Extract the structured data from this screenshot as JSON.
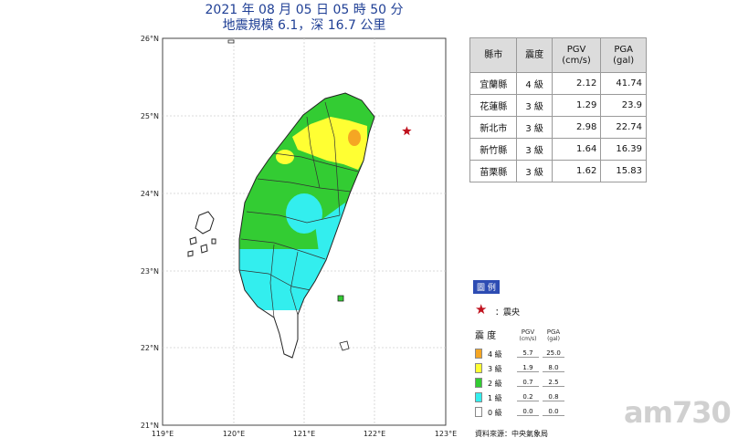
{
  "title": {
    "line1": "2021 年 08 月 05 日 05 時 50 分",
    "line2": "地震規模 6.1，深 16.7 公里"
  },
  "map": {
    "lat_labels": [
      "26°N",
      "25°N",
      "24°N",
      "23°N",
      "22°N",
      "21°N"
    ],
    "lon_labels": [
      "119°E",
      "120°E",
      "121°E",
      "122°E",
      "123°E"
    ],
    "epicenter": {
      "lon": 122.45,
      "lat": 24.8
    }
  },
  "table": {
    "headers": [
      "縣市",
      "震度",
      "PGV\n(cm/s)",
      "PGA\n(gal)"
    ],
    "header_county": "縣市",
    "header_intensity": "震度",
    "header_pgv": "PGV",
    "header_pgv_unit": "(cm/s)",
    "header_pga": "PGA",
    "header_pga_unit": "(gal)",
    "rows": [
      {
        "county": "宜蘭縣",
        "intensity": "4 級",
        "pgv": "2.12",
        "pga": "41.74"
      },
      {
        "county": "花蓮縣",
        "intensity": "3 級",
        "pgv": "1.29",
        "pga": "23.9"
      },
      {
        "county": "新北市",
        "intensity": "3 級",
        "pgv": "2.98",
        "pga": "22.74"
      },
      {
        "county": "新竹縣",
        "intensity": "3 級",
        "pgv": "1.64",
        "pga": "16.39"
      },
      {
        "county": "苗栗縣",
        "intensity": "3 級",
        "pgv": "1.62",
        "pga": "15.83"
      }
    ]
  },
  "legend": {
    "heading": "圖 例",
    "epicenter_label": "：震央",
    "col_intensity": "震 度",
    "col_pgv": "PGV",
    "col_pgv_unit": "(cm/s)",
    "col_pga": "PGA",
    "col_pga_unit": "(gal)",
    "levels": [
      {
        "label": "4 級",
        "pgv": "5.7",
        "pga": "25.0",
        "color": "#f5a623"
      },
      {
        "label": "3 級",
        "pgv": "1.9",
        "pga": "8.0",
        "color": "#ffff33"
      },
      {
        "label": "2 級",
        "pgv": "0.7",
        "pga": "2.5",
        "color": "#33cc33"
      },
      {
        "label": "1 級",
        "pgv": "0.2",
        "pga": "0.8",
        "color": "#33eeee"
      },
      {
        "label": "0 級",
        "pgv": "0.0",
        "pga": "0.0",
        "color": "#ffffff"
      }
    ],
    "source": "資料來源：中央氣象局"
  },
  "colors": {
    "level4": "#f5a623",
    "level3": "#ffff33",
    "level2": "#33cc33",
    "level1": "#33eeee",
    "epicenter": "#c0121e",
    "title": "#1f3f95"
  },
  "watermark": "am730"
}
